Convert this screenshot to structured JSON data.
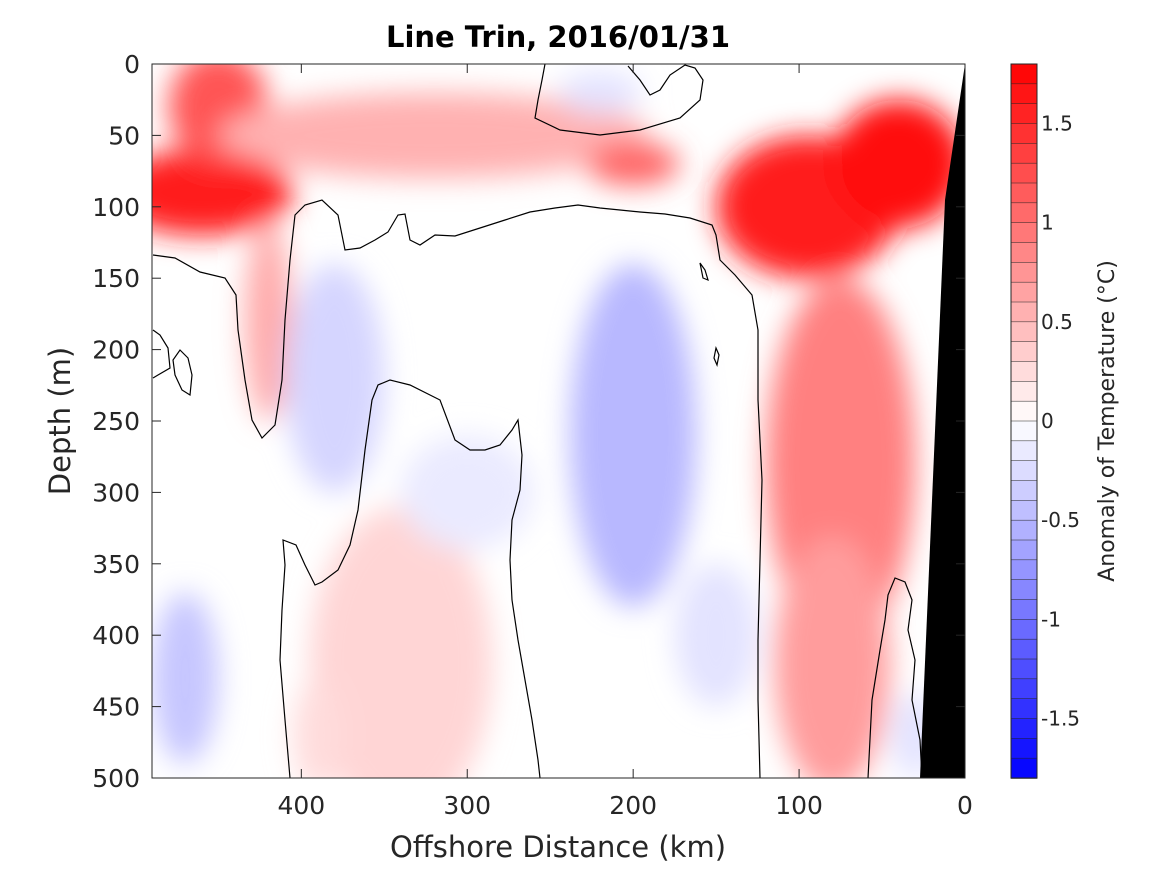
{
  "chart_data": {
    "type": "heatmap",
    "subtype": "filled-contour section",
    "title": "Line Trin, 2016/01/31",
    "xlabel": "Offshore Distance (km)",
    "ylabel": "Depth (m)",
    "colorbar_label": "Anomaly of Temperature (°C)",
    "xlim": [
      490,
      0
    ],
    "x_reversed": true,
    "ylim": [
      500,
      0
    ],
    "y_reversed": true,
    "x_ticks": [
      400,
      300,
      200,
      100,
      0
    ],
    "x_tick_labels": [
      "400",
      "300",
      "200",
      "100",
      "0"
    ],
    "y_ticks": [
      0,
      50,
      100,
      150,
      200,
      250,
      300,
      350,
      400,
      450,
      500
    ],
    "y_tick_labels": [
      "0",
      "50",
      "100",
      "150",
      "200",
      "250",
      "300",
      "350",
      "400",
      "450",
      "500"
    ],
    "colorbar": {
      "range": [
        -1.8,
        1.8
      ],
      "ticks": [
        1.5,
        1,
        0.5,
        0,
        -0.5,
        -1,
        -1.5
      ],
      "tick_labels": [
        "1.5",
        "1",
        "0.5",
        "0",
        "-0.5",
        "-1",
        "-1.5"
      ],
      "levels": 36,
      "colormap": "blue-white-red",
      "colors": {
        "cold": "#0000ff",
        "neutral": "#ffffff",
        "warm": "#ff0000"
      }
    },
    "zero_contour": true,
    "land_mask_color": "#000000",
    "features": [
      {
        "kind": "warm",
        "x": 460,
        "depth": 90,
        "anomaly": 1.6
      },
      {
        "kind": "warm",
        "x": 450,
        "depth": 25,
        "anomaly": 1.2
      },
      {
        "kind": "warm",
        "x": 95,
        "depth": 90,
        "anomaly": 1.6
      },
      {
        "kind": "warm",
        "x": 40,
        "depth": 60,
        "anomaly": 1.7
      },
      {
        "kind": "warm",
        "x": 200,
        "depth": 70,
        "anomaly": 1.1
      },
      {
        "kind": "warm",
        "x": 320,
        "depth": 50,
        "anomaly": 0.6
      },
      {
        "kind": "warm",
        "x": 75,
        "depth": 300,
        "anomaly": 0.9
      },
      {
        "kind": "warm",
        "x": 340,
        "depth": 400,
        "anomaly": 0.3
      },
      {
        "kind": "cold",
        "x": 200,
        "depth": 260,
        "anomaly": -0.5
      },
      {
        "kind": "cold",
        "x": 380,
        "depth": 220,
        "anomaly": -0.3
      },
      {
        "kind": "cold",
        "x": 470,
        "depth": 430,
        "anomaly": -0.4
      },
      {
        "kind": "cold",
        "x": 220,
        "depth": 20,
        "anomaly": -0.2
      }
    ],
    "grid": false
  }
}
